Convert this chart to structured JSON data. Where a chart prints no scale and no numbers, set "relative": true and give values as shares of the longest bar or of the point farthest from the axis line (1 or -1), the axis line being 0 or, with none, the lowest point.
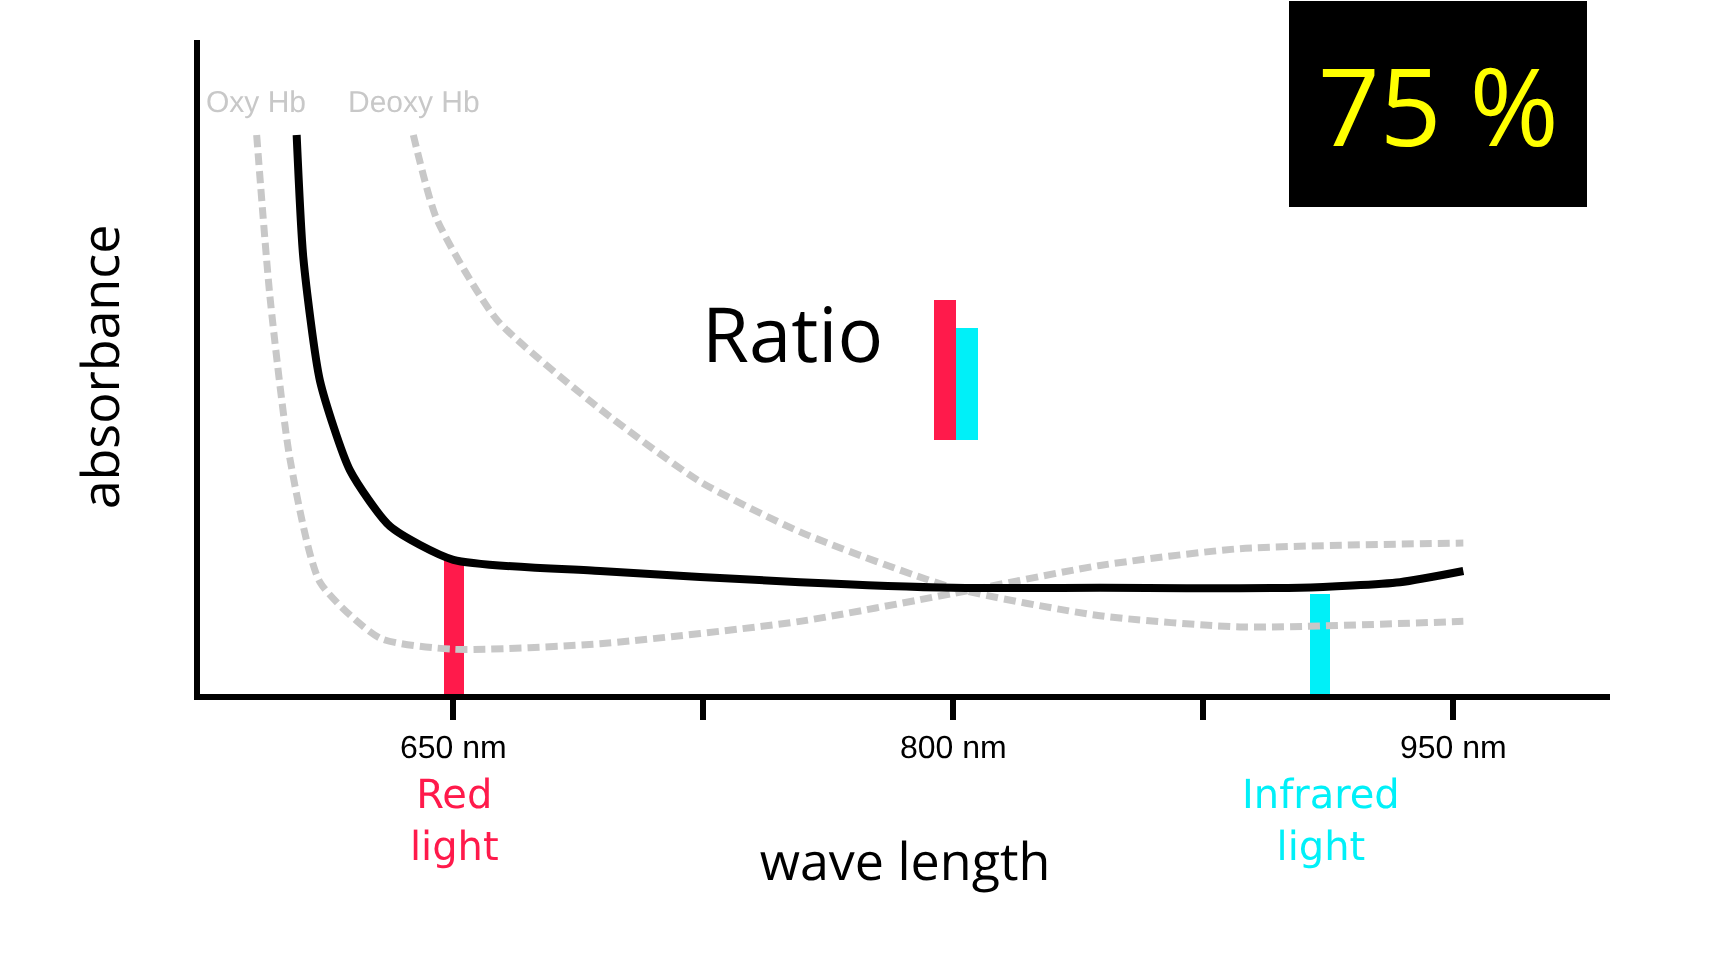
{
  "chart_data": {
    "type": "line",
    "relative": true,
    "xlabel": "wave length",
    "ylabel": "absorbance",
    "xlim": [
      574,
      997
    ],
    "xticks": [
      {
        "value": 650,
        "label": "650 nm"
      },
      {
        "value": 725,
        "label": null
      },
      {
        "value": 800,
        "label": "800 nm"
      },
      {
        "value": 875,
        "label": null
      },
      {
        "value": 950,
        "label": "950 nm"
      }
    ],
    "grid": false,
    "legend": false,
    "marker": "none",
    "series": [
      {
        "name": "Oxy Hb",
        "color": "#c8c8c8",
        "line_style": "dashed",
        "x": [
          591,
          595,
          601,
          610,
          628,
          650,
          694,
          754,
          800,
          844,
          886,
          953
        ],
        "values": [
          1.0,
          0.71,
          0.42,
          0.2,
          0.1,
          0.08,
          0.09,
          0.13,
          0.18,
          0.23,
          0.26,
          0.27
        ]
      },
      {
        "name": "Deoxy Hb",
        "color": "#c8c8c8",
        "line_style": "dashed",
        "x": [
          638,
          645,
          663,
          694,
          724,
          754,
          800,
          844,
          886,
          953
        ],
        "values": [
          1.0,
          0.85,
          0.67,
          0.51,
          0.38,
          0.29,
          0.19,
          0.14,
          0.12,
          0.13
        ]
      },
      {
        "color": "#000000",
        "line_style": "solid",
        "x": [
          603,
          605,
          610,
          619,
          631,
          650,
          694,
          754,
          800,
          844,
          904,
          934,
          953
        ],
        "values": [
          1.0,
          0.78,
          0.56,
          0.4,
          0.3,
          0.24,
          0.22,
          0.2,
          0.19,
          0.19,
          0.19,
          0.2,
          0.22
        ]
      },
      {
        "type": "bar",
        "color": "#ff1a4b",
        "x": [
          650
        ],
        "values": [
          0.24
        ]
      },
      {
        "type": "bar",
        "color": "#00f0f8",
        "x": [
          910
        ],
        "values": [
          0.18
        ]
      }
    ],
    "annotations": [
      "Ratio",
      "75 %",
      {
        "text": "Red light",
        "x": 650,
        "y": 0
      },
      {
        "text": "Infrared light",
        "x": 910,
        "y": 0
      }
    ]
  }
}
